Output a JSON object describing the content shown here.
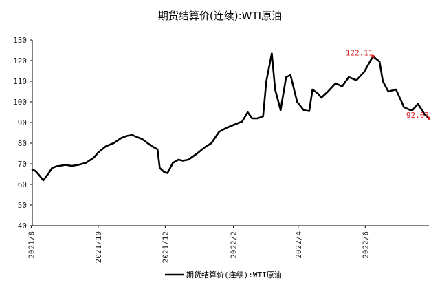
{
  "chart_data": {
    "type": "line",
    "title": "期货结算价(连续):WTI原油",
    "xlabel": "",
    "ylabel": "",
    "ylim": [
      40,
      130
    ],
    "yticks": [
      40,
      50,
      60,
      70,
      80,
      90,
      100,
      110,
      120,
      130
    ],
    "xlim": [
      "2021-08-02",
      "2022-07-29"
    ],
    "xticks": [
      "2021/8",
      "2021/10",
      "2021/12",
      "2022/2",
      "2022/4",
      "2022/6"
    ],
    "xtick_dates": [
      "2021-08-01",
      "2021-10-01",
      "2021-12-01",
      "2022-02-01",
      "2022-04-01",
      "2022-06-01"
    ],
    "grid": false,
    "legend": "bottom",
    "series": [
      {
        "name": "期货结算价(连续):WTI原油",
        "color": "#000000",
        "x": [
          "2021-08-02",
          "2021-08-05",
          "2021-08-09",
          "2021-08-12",
          "2021-08-17",
          "2021-08-20",
          "2021-08-24",
          "2021-08-27",
          "2021-09-01",
          "2021-09-07",
          "2021-09-13",
          "2021-09-20",
          "2021-09-27",
          "2021-10-01",
          "2021-10-08",
          "2021-10-15",
          "2021-10-22",
          "2021-10-27",
          "2021-11-01",
          "2021-11-05",
          "2021-11-10",
          "2021-11-15",
          "2021-11-19",
          "2021-11-24",
          "2021-11-26",
          "2021-11-30",
          "2021-12-03",
          "2021-12-08",
          "2021-12-13",
          "2021-12-17",
          "2021-12-22",
          "2021-12-30",
          "2022-01-06",
          "2022-01-12",
          "2022-01-19",
          "2022-01-26",
          "2022-02-02",
          "2022-02-09",
          "2022-02-14",
          "2022-02-18",
          "2022-02-23",
          "2022-02-28",
          "2022-03-03",
          "2022-03-08",
          "2022-03-11",
          "2022-03-16",
          "2022-03-21",
          "2022-03-25",
          "2022-03-31",
          "2022-04-06",
          "2022-04-11",
          "2022-04-14",
          "2022-04-19",
          "2022-04-22",
          "2022-04-28",
          "2022-05-05",
          "2022-05-11",
          "2022-05-17",
          "2022-05-24",
          "2022-05-31",
          "2022-06-08",
          "2022-06-14",
          "2022-06-17",
          "2022-06-22",
          "2022-06-29",
          "2022-07-05",
          "2022-07-06",
          "2022-07-12",
          "2022-07-14",
          "2022-07-19",
          "2022-07-25",
          "2022-07-29"
        ],
        "values": [
          67.2,
          66.5,
          64.0,
          62.0,
          65.5,
          68.0,
          68.8,
          69.0,
          69.5,
          69.0,
          69.5,
          70.5,
          73.0,
          75.5,
          78.5,
          80.0,
          82.5,
          83.5,
          84.0,
          83.0,
          82.0,
          80.0,
          78.5,
          77.0,
          68.0,
          66.0,
          65.5,
          70.5,
          72.0,
          71.5,
          72.0,
          75.0,
          78.0,
          80.0,
          85.5,
          87.5,
          89.0,
          90.5,
          95.0,
          92.0,
          92.0,
          93.0,
          110.0,
          123.5,
          106.0,
          96.0,
          112.0,
          113.0,
          100.0,
          96.0,
          95.5,
          106.0,
          104.0,
          102.0,
          105.0,
          109.0,
          107.5,
          112.0,
          110.5,
          114.5,
          122.11,
          119.5,
          110.0,
          105.0,
          106.0,
          99.0,
          97.5,
          96.0,
          96.0,
          99.0,
          94.0,
          92.07
        ]
      }
    ],
    "annotations": [
      {
        "text": "122.11",
        "date": "2022-06-08",
        "value": 122.11
      },
      {
        "text": "92.07",
        "date": "2022-07-29",
        "value": 92.07
      }
    ]
  }
}
